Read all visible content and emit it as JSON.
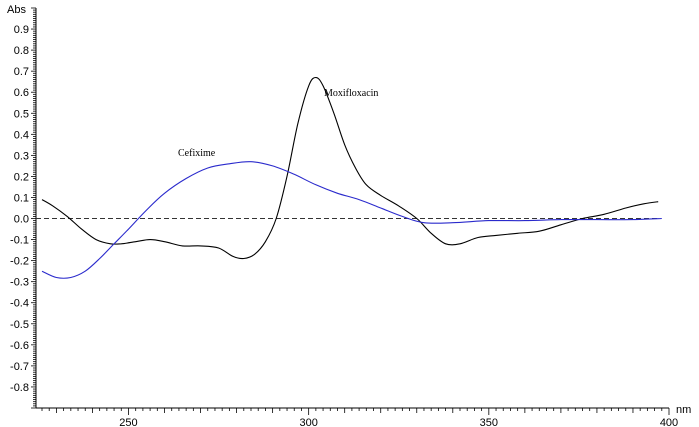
{
  "chart_data": {
    "type": "line",
    "xlabel": "nm",
    "ylabel": "Abs",
    "xlim": [
      226,
      400
    ],
    "ylim": [
      -0.9,
      1.0
    ],
    "xticks": [
      {
        "v": 250,
        "label": "250"
      },
      {
        "v": 300,
        "label": "300"
      },
      {
        "v": 350,
        "label": "350"
      },
      {
        "v": 400,
        "label": "400"
      }
    ],
    "yticks": [
      {
        "v": 0.9,
        "label": "0.9"
      },
      {
        "v": 0.8,
        "label": "0.8"
      },
      {
        "v": 0.7,
        "label": "0.7"
      },
      {
        "v": 0.6,
        "label": "0.6"
      },
      {
        "v": 0.5,
        "label": "0.5"
      },
      {
        "v": 0.4,
        "label": "0.4"
      },
      {
        "v": 0.3,
        "label": "0.3"
      },
      {
        "v": 0.2,
        "label": "0.2"
      },
      {
        "v": 0.1,
        "label": "0.1"
      },
      {
        "v": 0.0,
        "label": "0.0"
      },
      {
        "v": -0.1,
        "label": "-0.1"
      },
      {
        "v": -0.2,
        "label": "-0.2"
      },
      {
        "v": -0.3,
        "label": "-0.3"
      },
      {
        "v": -0.4,
        "label": "-0.4"
      },
      {
        "v": -0.5,
        "label": "-0.5"
      },
      {
        "v": -0.6,
        "label": "-0.6"
      },
      {
        "v": -0.7,
        "label": "-0.7"
      },
      {
        "v": -0.8,
        "label": "-0.8"
      }
    ],
    "baseline": {
      "y": 0.0,
      "style": "dashed"
    },
    "grid": false,
    "series": [
      {
        "name": "Moxifloxacin",
        "color": "#000000",
        "points": [
          [
            226,
            0.09
          ],
          [
            229,
            0.06
          ],
          [
            233,
            0.01
          ],
          [
            237,
            -0.05
          ],
          [
            241,
            -0.1
          ],
          [
            245,
            -0.12
          ],
          [
            248,
            -0.12
          ],
          [
            252,
            -0.11
          ],
          [
            256,
            -0.1
          ],
          [
            260,
            -0.11
          ],
          [
            265,
            -0.13
          ],
          [
            270,
            -0.13
          ],
          [
            275,
            -0.14
          ],
          [
            279,
            -0.18
          ],
          [
            282,
            -0.19
          ],
          [
            285,
            -0.17
          ],
          [
            288,
            -0.11
          ],
          [
            291,
            0.0
          ],
          [
            294,
            0.2
          ],
          [
            297,
            0.45
          ],
          [
            300,
            0.63
          ],
          [
            302,
            0.67
          ],
          [
            304,
            0.63
          ],
          [
            307,
            0.5
          ],
          [
            310,
            0.35
          ],
          [
            313,
            0.24
          ],
          [
            316,
            0.16
          ],
          [
            320,
            0.11
          ],
          [
            325,
            0.06
          ],
          [
            330,
            0.0
          ],
          [
            334,
            -0.07
          ],
          [
            338,
            -0.12
          ],
          [
            342,
            -0.12
          ],
          [
            347,
            -0.09
          ],
          [
            352,
            -0.08
          ],
          [
            358,
            -0.07
          ],
          [
            364,
            -0.06
          ],
          [
            370,
            -0.03
          ],
          [
            376,
            0.0
          ],
          [
            382,
            0.02
          ],
          [
            388,
            0.05
          ],
          [
            393,
            0.07
          ],
          [
            397,
            0.08
          ]
        ]
      },
      {
        "name": "Cefixime",
        "color": "#2a2acc",
        "points": [
          [
            226,
            -0.25
          ],
          [
            230,
            -0.28
          ],
          [
            234,
            -0.28
          ],
          [
            238,
            -0.25
          ],
          [
            242,
            -0.19
          ],
          [
            246,
            -0.12
          ],
          [
            250,
            -0.05
          ],
          [
            255,
            0.04
          ],
          [
            260,
            0.12
          ],
          [
            266,
            0.19
          ],
          [
            272,
            0.24
          ],
          [
            278,
            0.26
          ],
          [
            284,
            0.27
          ],
          [
            290,
            0.25
          ],
          [
            296,
            0.21
          ],
          [
            302,
            0.16
          ],
          [
            308,
            0.12
          ],
          [
            314,
            0.09
          ],
          [
            320,
            0.05
          ],
          [
            326,
            0.01
          ],
          [
            332,
            -0.02
          ],
          [
            340,
            -0.02
          ],
          [
            350,
            -0.01
          ],
          [
            360,
            -0.01
          ],
          [
            370,
            -0.005
          ],
          [
            380,
            -0.005
          ],
          [
            390,
            -0.005
          ],
          [
            398,
            0.0
          ]
        ]
      }
    ],
    "annotations": [
      {
        "text": "Moxifloxacin",
        "series": "Moxifloxacin"
      },
      {
        "text": "Cefixime",
        "series": "Cefixime"
      }
    ]
  }
}
